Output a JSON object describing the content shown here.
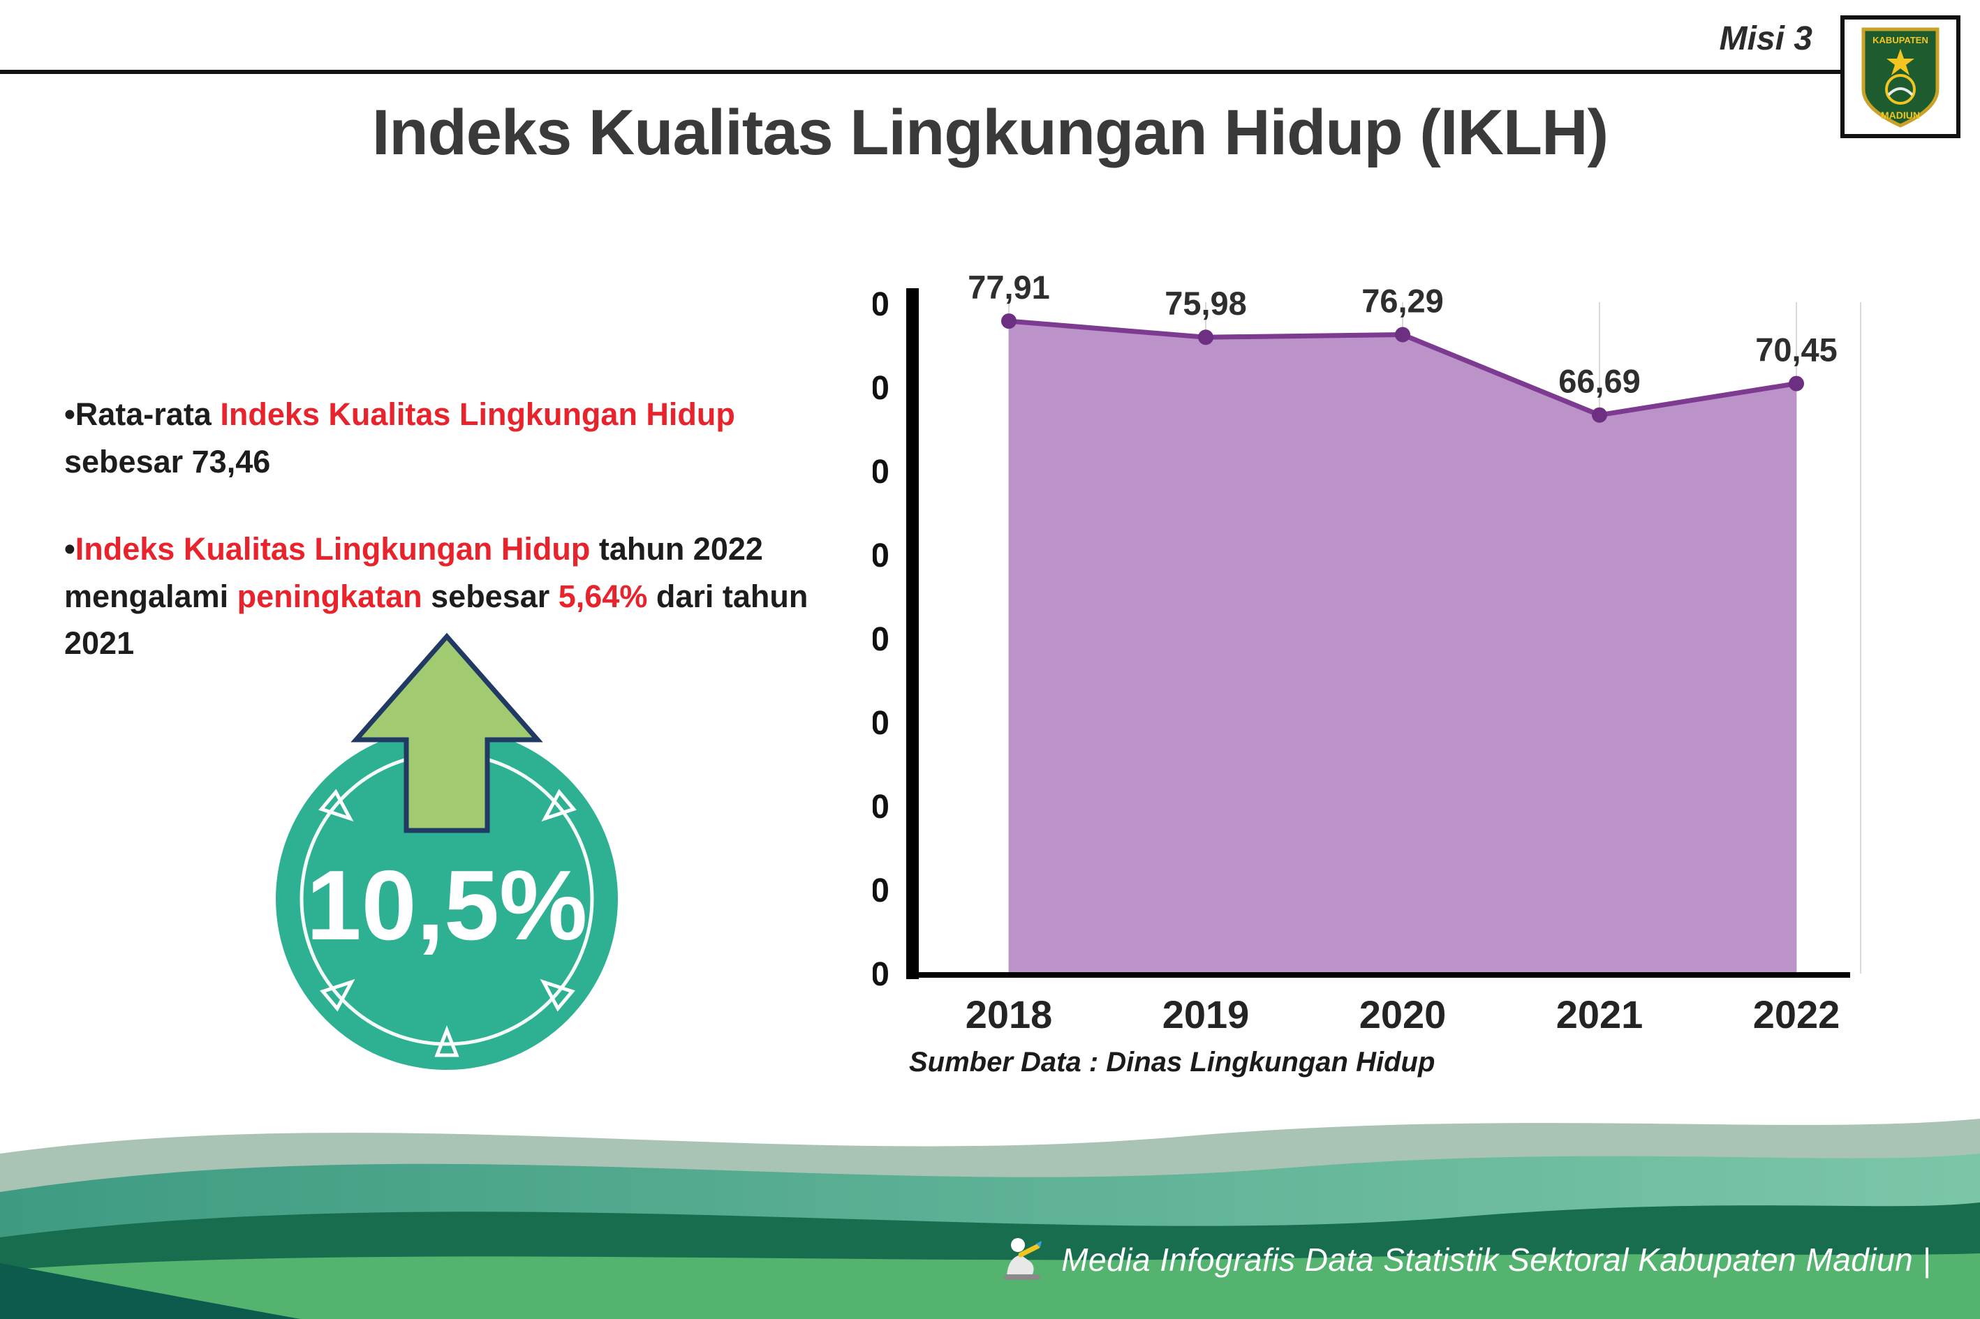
{
  "header": {
    "misi": "Misi 3",
    "logo": {
      "top": "KABUPATEN",
      "bottom": "MADIUN"
    }
  },
  "title": "Indeks Kualitas Lingkungan Hidup (IKLH)",
  "bullets": {
    "b1": {
      "s1": "•Rata-rata ",
      "s2": "Indeks Kualitas Lingkungan Hidup",
      "s3": " sebesar 73,46"
    },
    "b2": {
      "s1": "•",
      "s2": "Indeks Kualitas Lingkungan Hidup",
      "s3": " tahun 2022 mengalami ",
      "s4": "peningkatan",
      "s5": " sebesar ",
      "s6": "5,64%",
      "s7": " dari tahun 2021"
    }
  },
  "badge": {
    "value": "10,5%"
  },
  "chart_data": {
    "type": "area",
    "title": "",
    "categories": [
      "2018",
      "2019",
      "2020",
      "2021",
      "2022"
    ],
    "values": [
      77.91,
      75.98,
      76.29,
      66.69,
      70.45
    ],
    "labels": [
      "77,91",
      "75,98",
      "76,29",
      "66,69",
      "70,45"
    ],
    "xlabel": "",
    "ylabel": "",
    "ylim": [
      0,
      80
    ],
    "ytick": 10,
    "grid": "vertical-light",
    "legend": "none",
    "colors": {
      "area": "#bb93c9",
      "line": "#7c3a90",
      "marker": "#6d2f82"
    },
    "source": "Sumber Data : Dinas Lingkungan Hidup"
  },
  "accents": {
    "red": "#e8232c",
    "badge_teal": "#2eb192",
    "arrow_green": "#a2ca70"
  },
  "footer": {
    "text": "Media Infografis Data Statistik Sektoral Kabupaten Madiun |"
  }
}
